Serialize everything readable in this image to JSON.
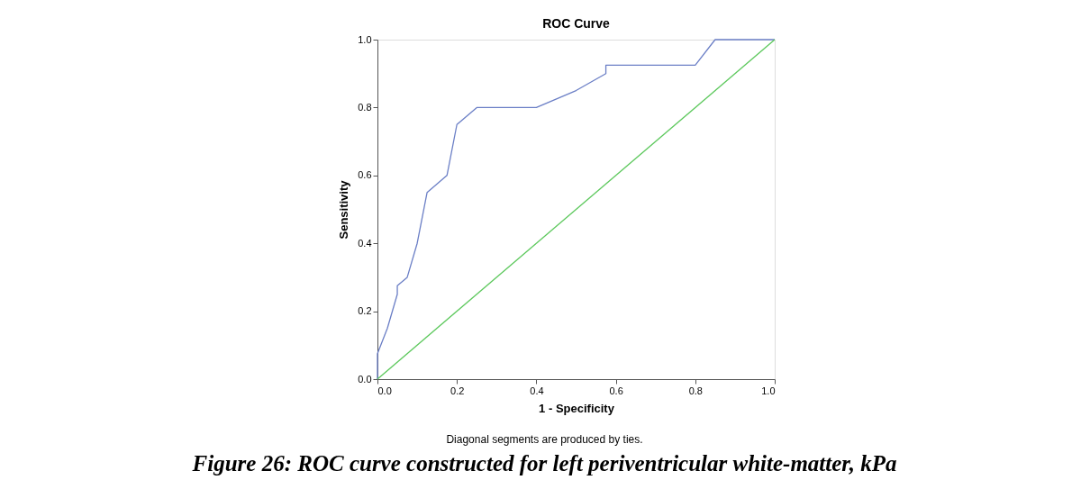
{
  "chart_data": {
    "type": "line",
    "title": "ROC Curve",
    "xlabel": "1 - Specificity",
    "ylabel": "Sensitivity",
    "xlim": [
      0,
      1
    ],
    "ylim": [
      0,
      1
    ],
    "xticks": [
      {
        "value": 0,
        "label": "0.0"
      },
      {
        "value": 0.2,
        "label": "0.2"
      },
      {
        "value": 0.4,
        "label": "0.4"
      },
      {
        "value": 0.6,
        "label": "0.6"
      },
      {
        "value": 0.8,
        "label": "0.8"
      },
      {
        "value": 1,
        "label": "1.0"
      }
    ],
    "yticks": [
      {
        "value": 0,
        "label": "0.0"
      },
      {
        "value": 0.2,
        "label": "0.2"
      },
      {
        "value": 0.4,
        "label": "0.4"
      },
      {
        "value": 0.6,
        "label": "0.6"
      },
      {
        "value": 0.8,
        "label": "0.8"
      },
      {
        "value": 1,
        "label": "1.0"
      }
    ],
    "series": [
      {
        "color": "#6b7fc6",
        "x": [
          0,
          0,
          0.025,
          0.05,
          0.05,
          0.075,
          0.1,
          0.125,
          0.175,
          0.2,
          0.25,
          0.4,
          0.5,
          0.575,
          0.575,
          0.8,
          0.85,
          1
        ],
        "values": [
          0,
          0.075,
          0.15,
          0.25,
          0.275,
          0.3,
          0.4,
          0.55,
          0.6,
          0.75,
          0.8,
          0.8,
          0.85,
          0.9,
          0.925,
          0.925,
          1,
          1
        ]
      },
      {
        "color": "#5cc85c",
        "x": [
          0,
          1
        ],
        "values": [
          0,
          1
        ]
      }
    ],
    "marker": "none",
    "line_style": "solid",
    "annotations": [
      "Diagonal segments are produced by ties.",
      "Figure 26: ROC curve constructed for left periventricular white-matter, kPa"
    ]
  }
}
